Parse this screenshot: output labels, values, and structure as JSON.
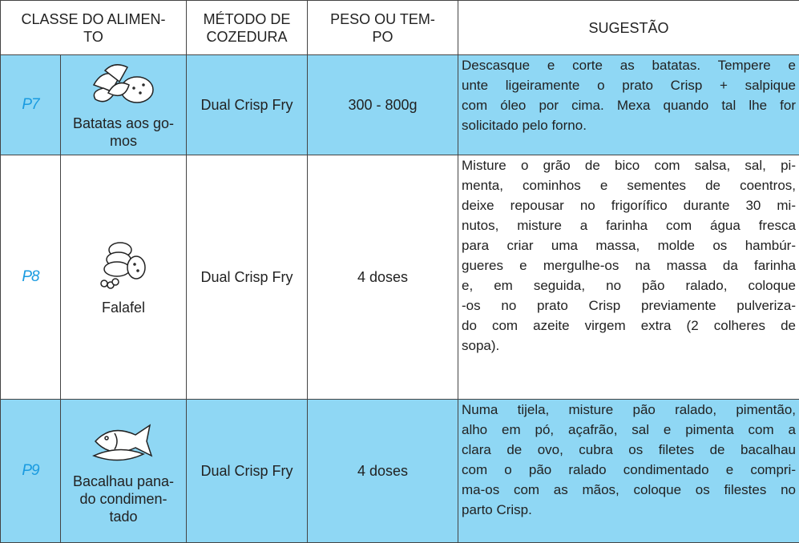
{
  "header": {
    "food_class": [
      "CLASSE DO ALIMEN-",
      "TO"
    ],
    "method": [
      "MÉTODO DE",
      "COZEDURA"
    ],
    "weight": [
      "PESO OU TEM-",
      "PO"
    ],
    "suggestion": [
      "SUGESTÃO"
    ]
  },
  "rows": [
    {
      "code": "P7",
      "food": [
        "Batatas aos go-",
        "mos"
      ],
      "method": [
        "Dual Crisp Fry"
      ],
      "weight": [
        "300 - 800g"
      ],
      "suggestion": [
        "Descasque e corte as batatas. Tempere e",
        "unte ligeiramente o prato Crisp + salpique",
        "com óleo por cima. Mexa quando tal lhe for",
        "solicitado pelo forno."
      ]
    },
    {
      "code": "P8",
      "food": [
        "Falafel"
      ],
      "method": [
        "Dual Crisp Fry"
      ],
      "weight": [
        "4 doses"
      ],
      "suggestion": [
        "Misture o grão de bico com salsa, sal, pi-",
        "menta, cominhos e sementes de coentros,",
        "deixe repousar no frigorífico durante 30 mi-",
        "nutos, misture a farinha com água fresca",
        "para criar uma massa, molde os hambúr-",
        "gueres e mergulhe-os na massa da farinha",
        "e, em seguida, no pão ralado, coloque",
        "-os no prato Crisp previamente pulveriza-",
        "do com azeite virgem extra (2 colheres de",
        "sopa)."
      ]
    },
    {
      "code": "P9",
      "food": [
        "Bacalhau pana-",
        "do condimen-",
        "tado"
      ],
      "method": [
        "Dual Crisp Fry"
      ],
      "weight": [
        "4 doses"
      ],
      "suggestion": [
        "Numa tijela, misture pão ralado, pimentão,",
        "alho em pó, açafrão, sal e pimenta com a",
        "clara de ovo, cubra os filetes de bacalhau",
        "com o pão ralado condimentado e compri-",
        "ma-os com as mãos, coloque os filestes no",
        "parto Crisp."
      ]
    }
  ]
}
